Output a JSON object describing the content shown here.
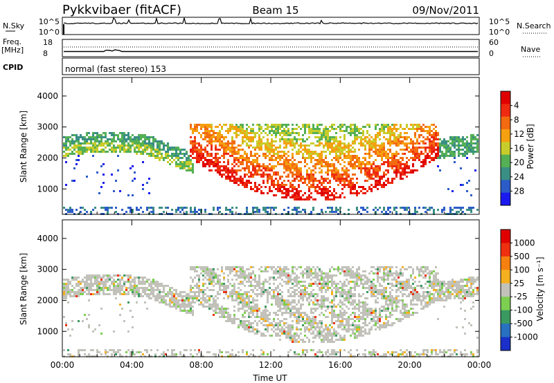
{
  "header": {
    "station": "Pykkvibaer (fitACF)",
    "beam": "Beam 15",
    "date": "09/Nov/2011"
  },
  "strip": {
    "nsky_label": "N.Sky",
    "nsky_ticks": [
      "10^5",
      "10^0"
    ],
    "nsearch_label": "N.Search",
    "nsearch_ticks": [
      "10^5",
      "10^0"
    ],
    "freq_label": "Freq.",
    "freq_unit": "[MHz]",
    "freq_ticks": [
      "18",
      "8"
    ],
    "nave_label": "Nave",
    "nave_ticks": [
      "60",
      "0"
    ],
    "cpid_label": "CPID",
    "cpid_text": "normal (fast stereo) 153"
  },
  "chart_data": [
    {
      "type": "heatmap",
      "name": "power-panel",
      "ylabel": "Slant Range [km]",
      "xlabel": "",
      "y_ticks": [
        1000,
        2000,
        3000,
        4000
      ],
      "ylim": [
        180,
        4600
      ],
      "x_ticks": [
        "00:00",
        "04:00",
        "08:00",
        "12:00",
        "16:00",
        "20:00",
        "00:00"
      ],
      "xlim_hours": [
        0,
        24
      ],
      "colorbar": {
        "label": "Power [dB]",
        "ticks": [
          "4",
          "8",
          "12",
          "16",
          "20",
          "24",
          "28"
        ],
        "colors": [
          "#1a1af0",
          "#2c5cc8",
          "#3a8f84",
          "#55b055",
          "#c8cc2a",
          "#f5a010",
          "#f36a10",
          "#ee2a10",
          "#e00000"
        ]
      },
      "bands": [
        {
          "label": "echo-region",
          "from_h": 7.5,
          "to_h": 21.5,
          "range_km": [
            600,
            3200
          ]
        }
      ]
    },
    {
      "type": "heatmap",
      "name": "velocity-panel",
      "ylabel": "Slant Range [km]",
      "xlabel": "Time UT",
      "y_ticks": [
        1000,
        2000,
        3000,
        4000
      ],
      "ylim": [
        180,
        4600
      ],
      "x_ticks": [
        "00:00",
        "04:00",
        "08:00",
        "12:00",
        "16:00",
        "20:00",
        "00:00"
      ],
      "xlim_hours": [
        0,
        24
      ],
      "colorbar": {
        "label": "Velocity [m s⁻¹]",
        "ticks": [
          "1000",
          "500",
          "100",
          "25",
          "-25",
          "-100",
          "-500",
          "-1000"
        ],
        "colors": [
          "#1a30c8",
          "#2870c0",
          "#3a9a60",
          "#7ccf50",
          "#c2c2bb",
          "#f5b020",
          "#f58010",
          "#ee3010",
          "#e00000"
        ]
      }
    }
  ]
}
